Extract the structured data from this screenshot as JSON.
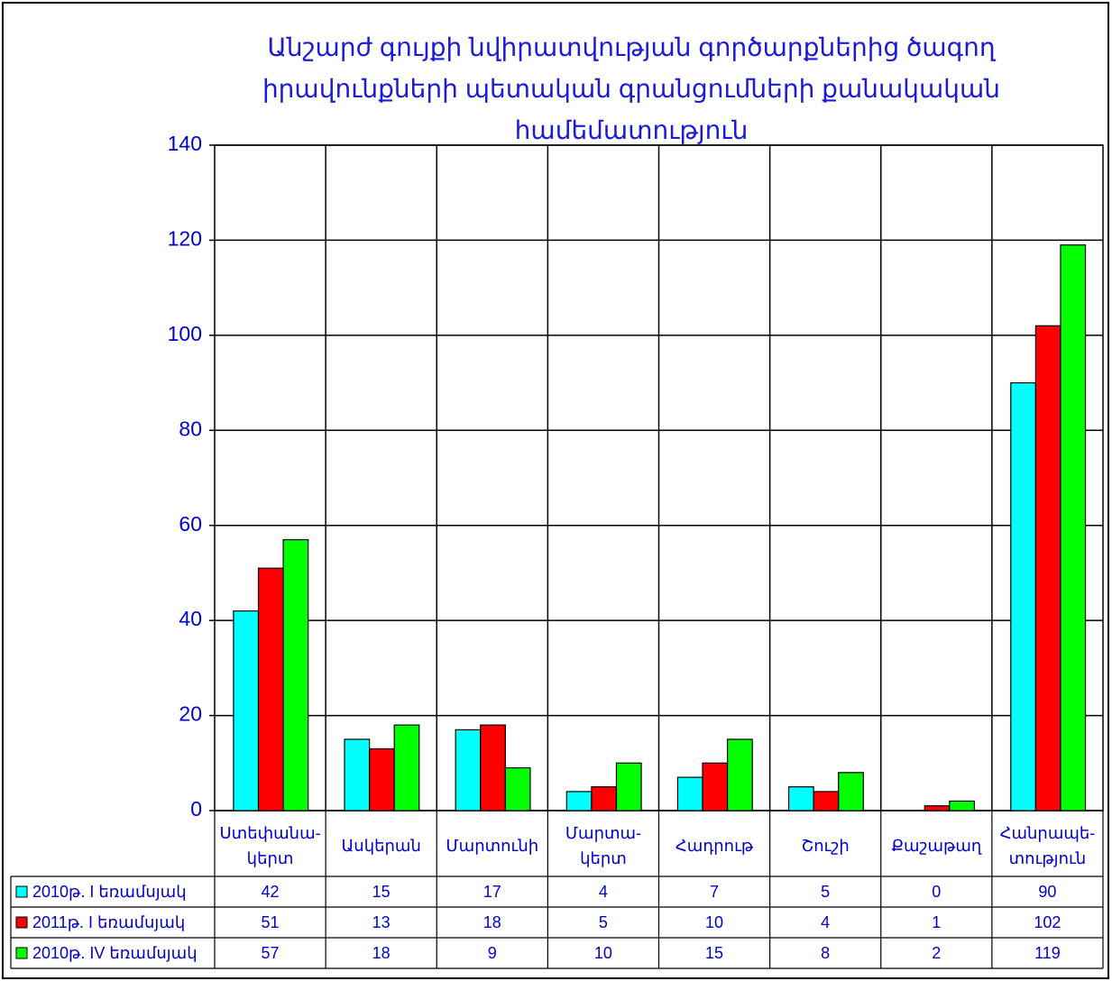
{
  "chart_data": {
    "type": "bar",
    "title": "Անշարժ գույքի նվիրատվության գործարքներից ծագող\nիրավունքների պետական գրանցումների քանակական\nհամեմատություն",
    "categories": [
      "Ստեփանա-\nկերտ",
      "Ասկերան",
      "Մարտունի",
      "Մարտա-\nկերտ",
      "Հադրութ",
      "Շուշի",
      "Քաշաթաղ",
      "Հանրապե-\nտություն"
    ],
    "series": [
      {
        "name": "2010թ. I եռամսյակ",
        "color": "#00ffff",
        "values": [
          42,
          15,
          17,
          4,
          7,
          5,
          0,
          90
        ]
      },
      {
        "name": "2011թ. I եռամսյակ",
        "color": "#ff0000",
        "values": [
          51,
          13,
          18,
          5,
          10,
          4,
          1,
          102
        ]
      },
      {
        "name": "2010թ. IV եռամսյակ",
        "color": "#00ff00",
        "values": [
          57,
          18,
          9,
          10,
          15,
          8,
          2,
          119
        ]
      }
    ],
    "ylim": [
      0,
      140
    ],
    "yticks": [
      0,
      20,
      40,
      60,
      80,
      100,
      120,
      140
    ],
    "grid": true,
    "legend": "table"
  }
}
